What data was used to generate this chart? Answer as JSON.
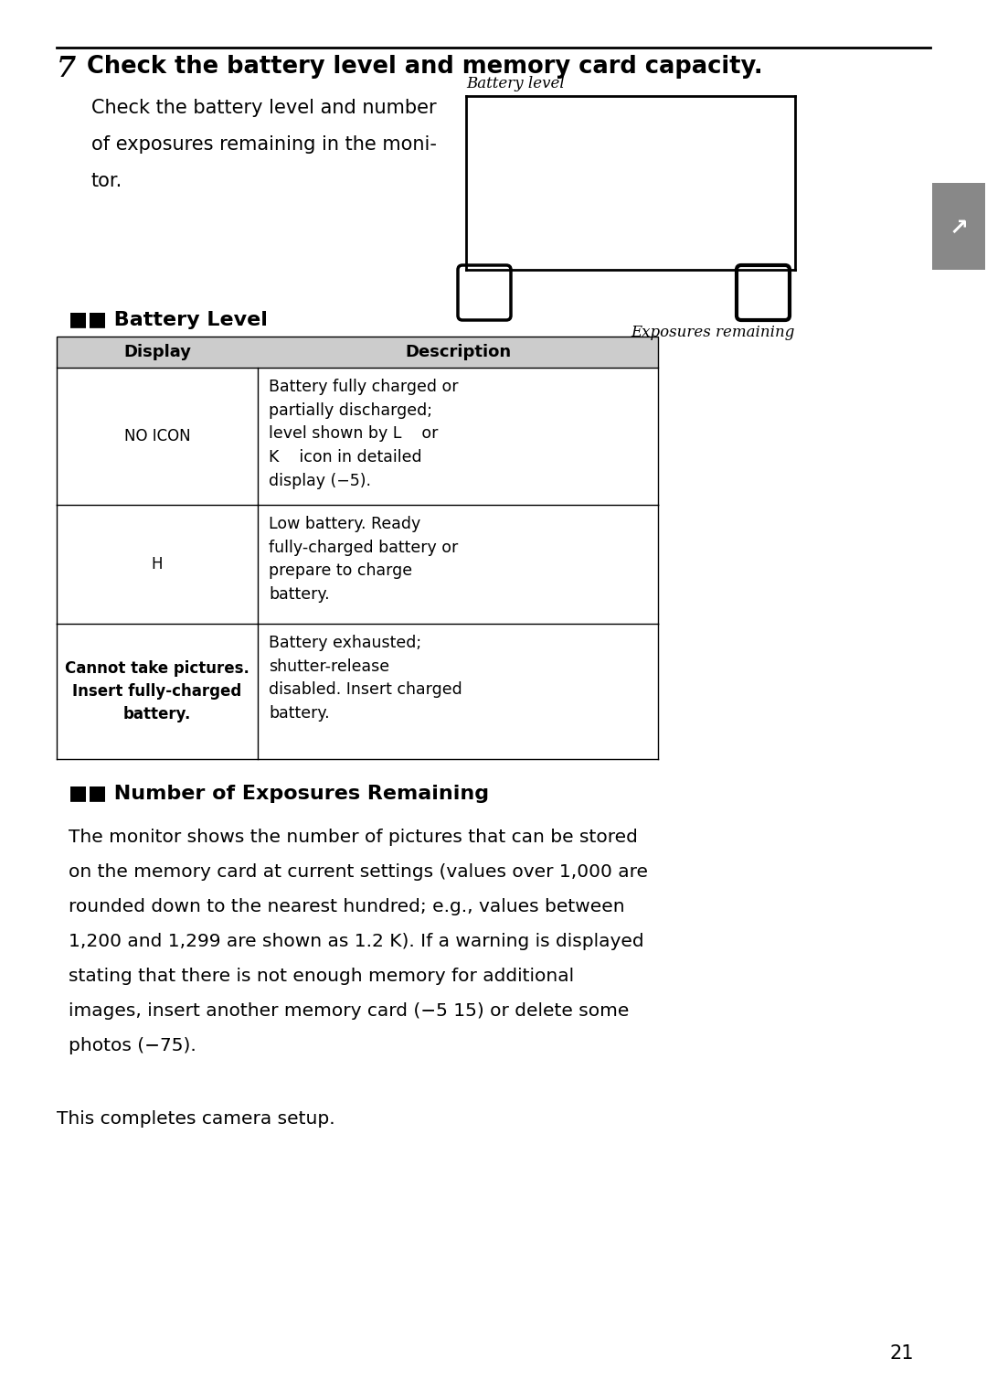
{
  "bg_color": "#ffffff",
  "section_number": "7",
  "section_title": "Check the battery level and memory card capacity.",
  "intro_line1": "Check the battery level and number",
  "intro_line2": "of exposures remaining in the moni-",
  "intro_line3": "tor.",
  "battery_label": "Battery level",
  "exposures_label": "Exposures remaining",
  "battery_section_title": "■■ Battery Level",
  "table_header_display": "Display",
  "table_header_desc": "Description",
  "table_header_bg": "#cccccc",
  "row0_display": "NO ICON",
  "row0_display_bold": false,
  "row0_desc": "Battery fully charged or\npartially discharged;\nlevel shown by L    or\nK    icon in detailed\ndisplay (−5).",
  "row1_display": "H",
  "row1_display_bold": false,
  "row1_desc": "Low battery. Ready\nfully-charged battery or\nprepare to charge\nbattery.",
  "row2_display": "Cannot take pictures.\nInsert fully-charged\nbattery.",
  "row2_display_bold": true,
  "row2_desc": "Battery exhausted;\nshutter-release\ndisabled. Insert charged\nbattery.",
  "exposures_section_title": "■■ Number of Exposures Remaining",
  "exposures_para_line1": "The monitor shows the number of pictures that can be stored",
  "exposures_para_line2": "on the memory card at current settings (values over 1,000 are",
  "exposures_para_line3": "rounded down to the nearest hundred; e.g., values between",
  "exposures_para_line4": "1,200 and 1,299 are shown as 1.2 K). If a warning is displayed",
  "exposures_para_line5": "stating that there is not enough memory for additional",
  "exposures_para_line6": "images, insert another memory card (−5 15) or delete some",
  "exposures_para_line7": "photos (−75).",
  "closing_text": "This completes camera setup.",
  "page_number": "21",
  "sidebar_color": "#888888"
}
